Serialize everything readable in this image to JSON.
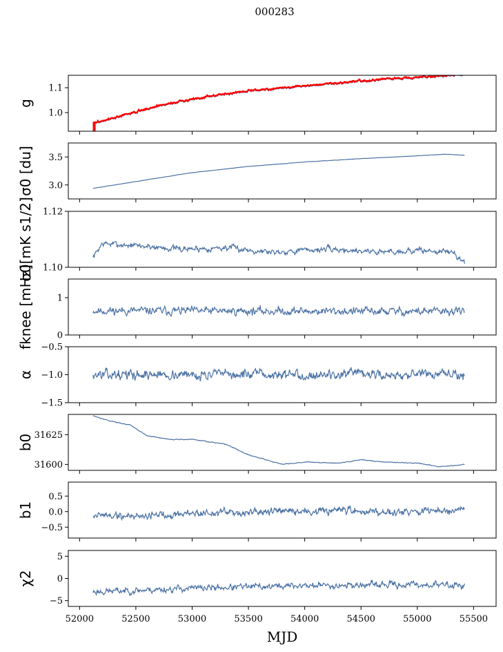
{
  "title": "000283",
  "xlabel": "MJD",
  "colors": {
    "series": "#4c72a4",
    "highlight": "#ff0000",
    "axes": "#000000"
  },
  "chart_data": {
    "type": "line",
    "x_range": [
      51900,
      55700
    ],
    "x_data_range": [
      52120,
      55420
    ],
    "x_ticks": [
      52000,
      52500,
      53000,
      53500,
      54000,
      54500,
      55000,
      55500
    ],
    "x_tick_labels": [
      "52000",
      "52500",
      "53000",
      "53500",
      "54000",
      "54500",
      "55000",
      "55500"
    ],
    "shared_x": true,
    "panels": [
      {
        "id": "g",
        "ylabel": "g",
        "ylim": [
          0.925,
          1.15
        ],
        "yticks": [
          1.0,
          1.1
        ],
        "ytick_labels": [
          "1.0",
          "1.1"
        ],
        "noise": 0.004,
        "seed": 3,
        "knots": [
          [
            52120,
            0.955
          ],
          [
            52300,
            0.975
          ],
          [
            52700,
            1.025
          ],
          [
            53100,
            1.06
          ],
          [
            53500,
            1.085
          ],
          [
            54000,
            1.105
          ],
          [
            54500,
            1.125
          ],
          [
            55000,
            1.14
          ],
          [
            55420,
            1.15
          ]
        ],
        "overlay": {
          "name": "red",
          "offset": 0.003,
          "tick_x": 52130,
          "tick_y": [
            0.925,
            0.96
          ]
        }
      },
      {
        "id": "sigma0-du",
        "ylabel": "σ0 [du]",
        "ylim": [
          2.75,
          3.75
        ],
        "yticks": [
          3.0,
          3.5
        ],
        "ytick_labels": [
          "3.0",
          "3.5"
        ],
        "noise": 0.003,
        "seed": 5,
        "knots": [
          [
            52120,
            2.94
          ],
          [
            52500,
            3.06
          ],
          [
            53000,
            3.22
          ],
          [
            53500,
            3.33
          ],
          [
            54000,
            3.41
          ],
          [
            54500,
            3.47
          ],
          [
            55000,
            3.52
          ],
          [
            55250,
            3.55
          ],
          [
            55420,
            3.53
          ]
        ]
      },
      {
        "id": "sigma0-mk",
        "ylabel": "σ0[mK s1/2]",
        "ylim": [
          1.1,
          1.12
        ],
        "yticks": [
          1.1,
          1.12
        ],
        "ytick_labels": [
          "1.10",
          "1.12"
        ],
        "noise": 0.0011,
        "seed": 7,
        "knots": [
          [
            52120,
            1.1035
          ],
          [
            52200,
            1.1085
          ],
          [
            52600,
            1.1075
          ],
          [
            52900,
            1.1065
          ],
          [
            53300,
            1.107
          ],
          [
            53700,
            1.1055
          ],
          [
            54200,
            1.1065
          ],
          [
            54700,
            1.1055
          ],
          [
            55000,
            1.106
          ],
          [
            55300,
            1.1055
          ],
          [
            55420,
            1.102
          ]
        ]
      },
      {
        "id": "fknee",
        "ylabel": "fknee [mHz]",
        "ylim": [
          0,
          1.5
        ],
        "yticks": [
          0,
          1
        ],
        "ytick_labels": [
          "0",
          "1"
        ],
        "noise": 0.11,
        "seed": 11,
        "knots": [
          [
            52120,
            0.65
          ],
          [
            55420,
            0.63
          ]
        ]
      },
      {
        "id": "alpha",
        "ylabel": "α",
        "ylim": [
          -1.5,
          -0.5
        ],
        "yticks": [
          -1.5,
          -1.0,
          -0.5
        ],
        "ytick_labels": [
          "−1.5",
          "−1.0",
          "−0.5"
        ],
        "noise": 0.09,
        "seed": 13,
        "knots": [
          [
            52120,
            -1.0
          ],
          [
            55420,
            -1.0
          ]
        ]
      },
      {
        "id": "b0",
        "ylabel": "b0",
        "ylim": [
          31595,
          31642
        ],
        "yticks": [
          31600,
          31625
        ],
        "ytick_labels": [
          "31600",
          "31625"
        ],
        "noise": 0.35,
        "seed": 17,
        "knots": [
          [
            52120,
            31641
          ],
          [
            52250,
            31637
          ],
          [
            52450,
            31633
          ],
          [
            52600,
            31624
          ],
          [
            52800,
            31621
          ],
          [
            53000,
            31621
          ],
          [
            53300,
            31617
          ],
          [
            53500,
            31608
          ],
          [
            53800,
            31600
          ],
          [
            54000,
            31602
          ],
          [
            54300,
            31601
          ],
          [
            54500,
            31604
          ],
          [
            54700,
            31602
          ],
          [
            55000,
            31601
          ],
          [
            55200,
            31598
          ],
          [
            55420,
            31600
          ]
        ]
      },
      {
        "id": "b1",
        "ylabel": "b1",
        "ylim": [
          -0.85,
          0.95
        ],
        "yticks": [
          -0.5,
          0.0,
          0.5
        ],
        "ytick_labels": [
          "−0.5",
          "0.0",
          "0.5"
        ],
        "noise": 0.13,
        "seed": 19,
        "knots": [
          [
            52120,
            -0.1
          ],
          [
            52400,
            -0.15
          ],
          [
            53000,
            -0.05
          ],
          [
            54000,
            0.0
          ],
          [
            55000,
            0.02
          ],
          [
            55420,
            0.0
          ]
        ]
      },
      {
        "id": "chi2",
        "ylabel": "χ2",
        "ylim": [
          -6.3,
          6.3
        ],
        "yticks": [
          -5,
          0,
          5
        ],
        "ytick_labels": [
          "−5",
          "0",
          "5"
        ],
        "noise": 0.75,
        "seed": 23,
        "knots": [
          [
            52120,
            -3.0
          ],
          [
            52600,
            -2.6
          ],
          [
            53000,
            -2.2
          ],
          [
            54000,
            -1.6
          ],
          [
            55000,
            -1.4
          ],
          [
            55420,
            -1.5
          ]
        ]
      }
    ]
  }
}
